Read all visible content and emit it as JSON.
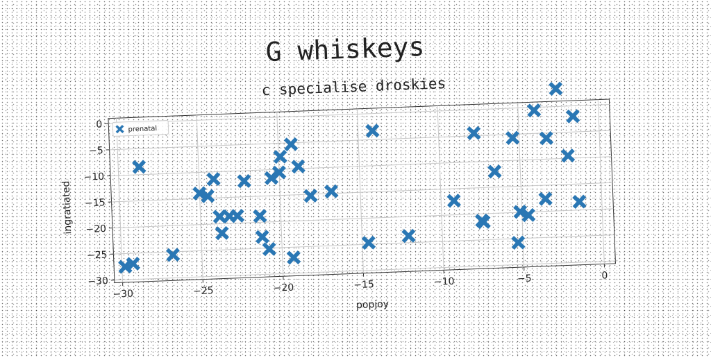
{
  "chart_data": {
    "type": "scatter",
    "title": "G whiskeys",
    "subtitle": "c specialise droskies",
    "xlabel": "popjoy",
    "ylabel": "ingratiated",
    "xlim": [
      -30.5,
      0.7
    ],
    "ylim": [
      -30.5,
      1.0
    ],
    "xticks": [
      -30,
      -25,
      -20,
      -15,
      -10,
      -5,
      0
    ],
    "yticks": [
      0,
      -5,
      -10,
      -15,
      -20,
      -25,
      -30
    ],
    "xtick_labels": [
      "−30",
      "−25",
      "−20",
      "−15",
      "−10",
      "−5",
      "0"
    ],
    "ytick_labels": [
      "0",
      "−5",
      "−10",
      "−15",
      "−20",
      "−25",
      "−30"
    ],
    "grid": true,
    "legend_position": "top-left",
    "marker": "X",
    "color": "#2a77b4",
    "series": [
      {
        "name": "prenatal",
        "points": [
          {
            "x": -29.8,
            "y": -27.5
          },
          {
            "x": -29.3,
            "y": -27.0
          },
          {
            "x": -28.7,
            "y": -8.5
          },
          {
            "x": -26.8,
            "y": -25.6
          },
          {
            "x": -25.0,
            "y": -14.0
          },
          {
            "x": -24.5,
            "y": -14.6
          },
          {
            "x": -24.1,
            "y": -11.4
          },
          {
            "x": -23.8,
            "y": -18.6
          },
          {
            "x": -23.7,
            "y": -21.8
          },
          {
            "x": -23.2,
            "y": -18.6
          },
          {
            "x": -22.7,
            "y": -18.6
          },
          {
            "x": -22.2,
            "y": -12.0
          },
          {
            "x": -21.3,
            "y": -18.8
          },
          {
            "x": -21.2,
            "y": -22.8
          },
          {
            "x": -20.8,
            "y": -25.2
          },
          {
            "x": -20.5,
            "y": -11.6
          },
          {
            "x": -20.0,
            "y": -10.6
          },
          {
            "x": -19.9,
            "y": -7.6
          },
          {
            "x": -19.3,
            "y": -27.0
          },
          {
            "x": -19.2,
            "y": -5.3
          },
          {
            "x": -18.8,
            "y": -9.6
          },
          {
            "x": -18.1,
            "y": -15.3
          },
          {
            "x": -16.8,
            "y": -14.6
          },
          {
            "x": -14.6,
            "y": -24.7
          },
          {
            "x": -14.1,
            "y": -3.3
          },
          {
            "x": -12.1,
            "y": -23.7
          },
          {
            "x": -9.2,
            "y": -17.3
          },
          {
            "x": -7.8,
            "y": -4.5
          },
          {
            "x": -7.5,
            "y": -21.3
          },
          {
            "x": -7.4,
            "y": -21.6
          },
          {
            "x": -6.6,
            "y": -12.0
          },
          {
            "x": -5.4,
            "y": -5.7
          },
          {
            "x": -5.3,
            "y": -25.8
          },
          {
            "x": -5.1,
            "y": -19.9
          },
          {
            "x": -4.6,
            "y": -20.6
          },
          {
            "x": -4.0,
            "y": -0.6
          },
          {
            "x": -3.5,
            "y": -17.6
          },
          {
            "x": -3.3,
            "y": -6.0
          },
          {
            "x": -2.6,
            "y": 3.4
          },
          {
            "x": -2.0,
            "y": -9.5
          },
          {
            "x": -1.6,
            "y": -2.0
          },
          {
            "x": -1.4,
            "y": -18.4
          }
        ]
      }
    ]
  }
}
